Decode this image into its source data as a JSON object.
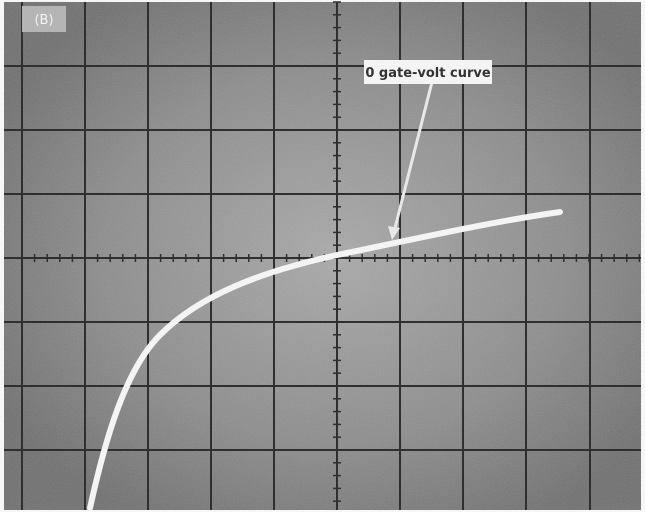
{
  "panel_label": "(B)",
  "annotation": "0 gate-volt curve"
}
